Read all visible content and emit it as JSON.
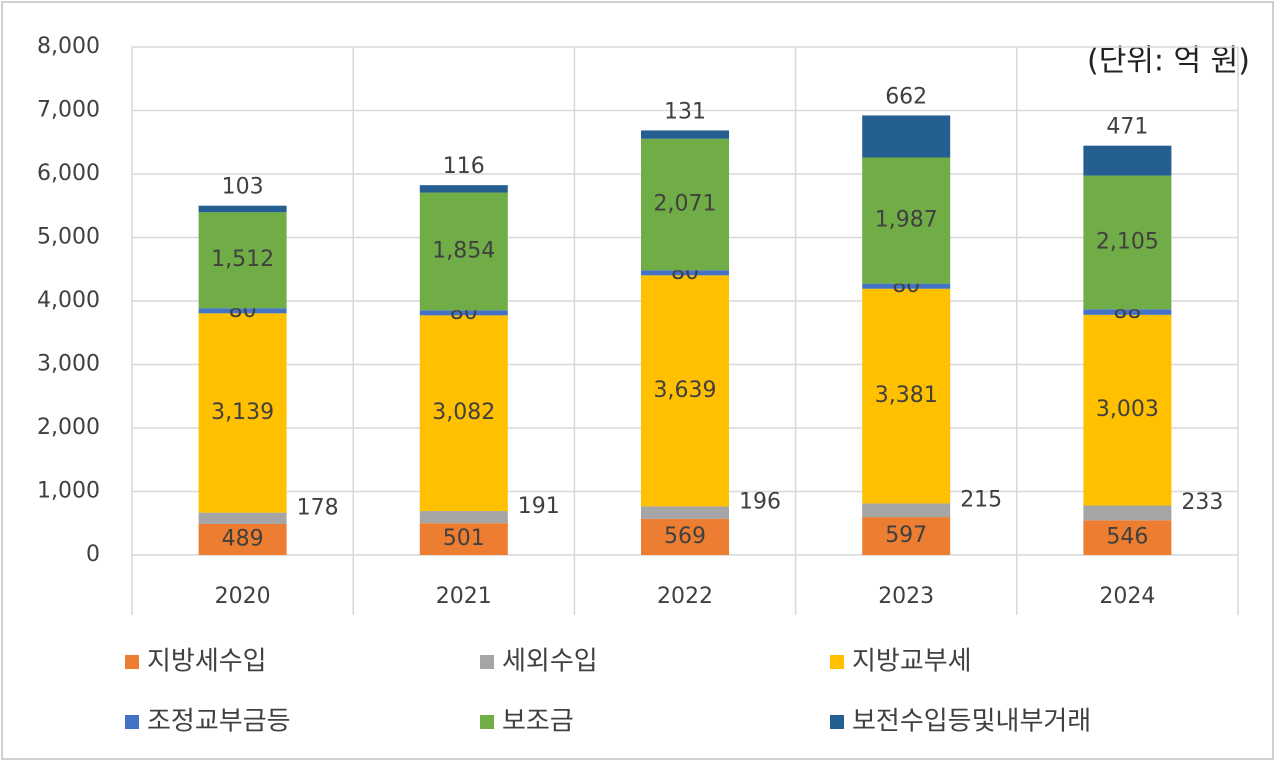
{
  "chart_data": {
    "type": "stacked_bar",
    "annotation": "(단위: 억 원)",
    "categories": [
      "2020",
      "2021",
      "2022",
      "2023",
      "2024"
    ],
    "series": [
      {
        "name": "지방세수입",
        "color": "#ed7d31",
        "values": [
          489,
          501,
          569,
          597,
          546
        ],
        "value_labels": [
          "489",
          "501",
          "569",
          "597",
          "546"
        ]
      },
      {
        "name": "세외수입",
        "color": "#a5a5a5",
        "values": [
          178,
          191,
          196,
          215,
          233
        ],
        "value_labels": [
          "178",
          "191",
          "196",
          "215",
          "233"
        ]
      },
      {
        "name": "지방교부세",
        "color": "#ffc000",
        "values": [
          3139,
          3082,
          3639,
          3381,
          3003
        ],
        "value_labels": [
          "3,139",
          "3,082",
          "3,639",
          "3,381",
          "3,003"
        ]
      },
      {
        "name": "조정교부금등",
        "color": "#4472c4",
        "values": [
          80,
          80,
          80,
          80,
          88
        ],
        "value_labels": [
          "80",
          "80",
          "80",
          "80",
          "88"
        ]
      },
      {
        "name": "보조금",
        "color": "#70ad47",
        "values": [
          1512,
          1854,
          2071,
          1987,
          2105
        ],
        "value_labels": [
          "1,512",
          "1,854",
          "2,071",
          "1,987",
          "2,105"
        ]
      },
      {
        "name": "보전수입등및내부거래",
        "color": "#255e91",
        "values": [
          103,
          116,
          131,
          662,
          471
        ],
        "value_labels": [
          "103",
          "116",
          "131",
          "662",
          "471"
        ]
      }
    ],
    "ylim": [
      0,
      8000
    ],
    "yticks": [
      0,
      {
        "value": 1000,
        "label": "1,000"
      },
      {
        "value": 2000,
        "label": "2,000"
      },
      {
        "value": 3000,
        "label": "3,000"
      },
      {
        "value": 4000,
        "label": "4,000"
      },
      {
        "value": 5000,
        "label": "5,000"
      },
      {
        "value": 6000,
        "label": "6,000"
      },
      {
        "value": 7000,
        "label": "7,000"
      },
      {
        "value": 8000,
        "label": "8,000"
      }
    ],
    "grid": true
  }
}
